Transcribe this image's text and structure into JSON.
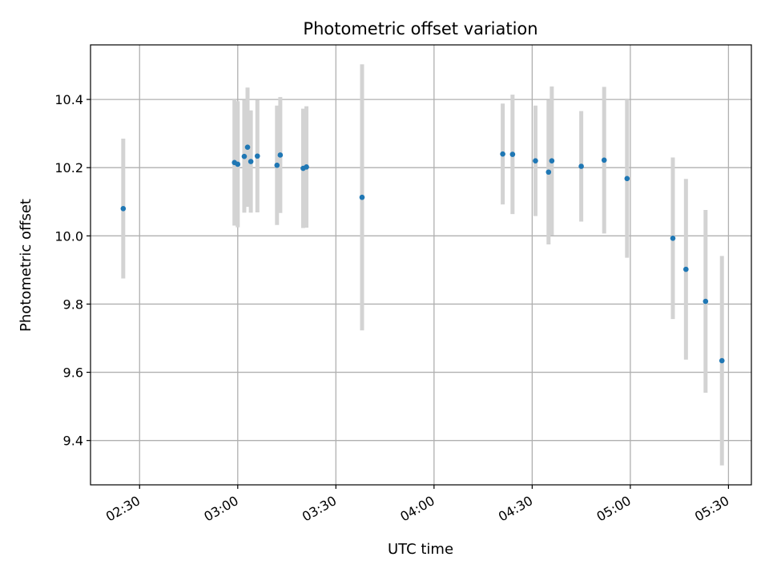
{
  "chart_data": {
    "type": "scatter",
    "title": "Photometric offset variation",
    "xlabel": "UTC time",
    "ylabel": "Photometric offset",
    "x_ticks": [
      "02:30",
      "03:00",
      "03:30",
      "04:00",
      "04:30",
      "05:00",
      "05:30"
    ],
    "y_ticks": [
      "9.4",
      "9.6",
      "9.8",
      "10.0",
      "10.2",
      "10.4"
    ],
    "xlim": [
      "02:15",
      "05:37"
    ],
    "ylim": [
      9.27,
      10.56
    ],
    "grid": true,
    "colors": {
      "marker": "#1f77b4",
      "errorbar": "#d3d3d3",
      "grid": "#b0b0b0"
    },
    "series": [
      {
        "points": [
          {
            "x": "02:25",
            "y": 10.08,
            "err": 0.205
          },
          {
            "x": "02:59",
            "y": 10.215,
            "err": 0.185
          },
          {
            "x": "03:00",
            "y": 10.21,
            "err": 0.185
          },
          {
            "x": "03:02",
            "y": 10.233,
            "err": 0.165
          },
          {
            "x": "03:03",
            "y": 10.26,
            "err": 0.175
          },
          {
            "x": "03:04",
            "y": 10.218,
            "err": 0.15
          },
          {
            "x": "03:06",
            "y": 10.234,
            "err": 0.165
          },
          {
            "x": "03:12",
            "y": 10.207,
            "err": 0.175
          },
          {
            "x": "03:13",
            "y": 10.237,
            "err": 0.17
          },
          {
            "x": "03:20",
            "y": 10.198,
            "err": 0.175
          },
          {
            "x": "03:21",
            "y": 10.202,
            "err": 0.178
          },
          {
            "x": "03:38",
            "y": 10.113,
            "err": 0.39
          },
          {
            "x": "04:21",
            "y": 10.24,
            "err": 0.148
          },
          {
            "x": "04:24",
            "y": 10.239,
            "err": 0.175
          },
          {
            "x": "04:31",
            "y": 10.22,
            "err": 0.162
          },
          {
            "x": "04:35",
            "y": 10.187,
            "err": 0.212
          },
          {
            "x": "04:36",
            "y": 10.22,
            "err": 0.218
          },
          {
            "x": "04:45",
            "y": 10.204,
            "err": 0.162
          },
          {
            "x": "04:52",
            "y": 10.222,
            "err": 0.215
          },
          {
            "x": "04:59",
            "y": 10.168,
            "err": 0.232
          },
          {
            "x": "05:13",
            "y": 9.993,
            "err": 0.237
          },
          {
            "x": "05:17",
            "y": 9.902,
            "err": 0.265
          },
          {
            "x": "05:23",
            "y": 9.808,
            "err": 0.268
          },
          {
            "x": "05:28",
            "y": 9.634,
            "err": 0.307
          }
        ]
      }
    ]
  }
}
